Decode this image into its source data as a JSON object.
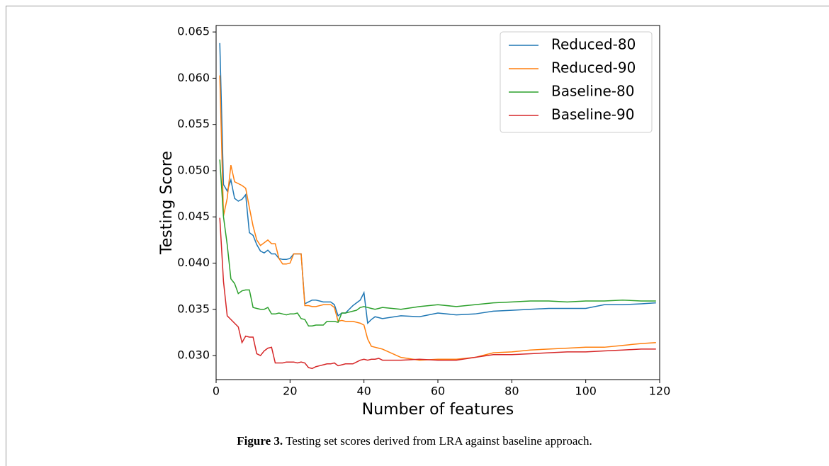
{
  "chart_data": {
    "type": "line",
    "x_label": "Number of features",
    "y_label": "Testing Score",
    "x": [
      1,
      2,
      3,
      4,
      5,
      6,
      7,
      8,
      9,
      10,
      11,
      12,
      13,
      14,
      15,
      16,
      17,
      18,
      19,
      20,
      21,
      22,
      23,
      24,
      25,
      26,
      27,
      28,
      29,
      30,
      31,
      32,
      33,
      34,
      35,
      36,
      37,
      38,
      39,
      40,
      41,
      42,
      43,
      44,
      45,
      50,
      55,
      60,
      65,
      70,
      75,
      80,
      85,
      90,
      95,
      100,
      105,
      110,
      115,
      119
    ],
    "series": [
      {
        "name": "Reduced-80",
        "color": "#1f77b4",
        "values": [
          0.0638,
          0.0485,
          0.0478,
          0.049,
          0.047,
          0.0467,
          0.0469,
          0.0474,
          0.0433,
          0.043,
          0.042,
          0.0413,
          0.0411,
          0.0414,
          0.041,
          0.041,
          0.0405,
          0.0404,
          0.0404,
          0.0405,
          0.041,
          0.041,
          0.041,
          0.0356,
          0.0358,
          0.036,
          0.036,
          0.0359,
          0.0358,
          0.0358,
          0.0358,
          0.0355,
          0.0343,
          0.0346,
          0.0346,
          0.035,
          0.0354,
          0.0357,
          0.036,
          0.0368,
          0.0335,
          0.0339,
          0.0342,
          0.0341,
          0.034,
          0.0343,
          0.0342,
          0.0346,
          0.0344,
          0.0345,
          0.0348,
          0.0349,
          0.035,
          0.0351,
          0.0351,
          0.0351,
          0.0355,
          0.0355,
          0.0356,
          0.0357
        ]
      },
      {
        "name": "Reduced-90",
        "color": "#ff7f0e",
        "values": [
          0.0603,
          0.0451,
          0.047,
          0.0506,
          0.0488,
          0.0486,
          0.0484,
          0.0481,
          0.046,
          0.044,
          0.0425,
          0.0419,
          0.0422,
          0.0425,
          0.0421,
          0.0421,
          0.0405,
          0.0399,
          0.0399,
          0.04,
          0.041,
          0.041,
          0.041,
          0.0354,
          0.0354,
          0.0353,
          0.0353,
          0.0354,
          0.0355,
          0.0355,
          0.0355,
          0.0352,
          0.0337,
          0.0338,
          0.0337,
          0.0337,
          0.0337,
          0.0336,
          0.0335,
          0.0333,
          0.0318,
          0.031,
          0.0309,
          0.0308,
          0.0307,
          0.0298,
          0.0295,
          0.0296,
          0.0296,
          0.0298,
          0.0303,
          0.0304,
          0.0306,
          0.0307,
          0.0308,
          0.0309,
          0.0309,
          0.0311,
          0.0313,
          0.0314
        ]
      },
      {
        "name": "Baseline-80",
        "color": "#2ca02c",
        "values": [
          0.0512,
          0.045,
          0.042,
          0.0383,
          0.0378,
          0.0367,
          0.037,
          0.0371,
          0.0371,
          0.0352,
          0.0351,
          0.035,
          0.035,
          0.0352,
          0.0345,
          0.0345,
          0.0346,
          0.0345,
          0.0344,
          0.0345,
          0.0345,
          0.0346,
          0.034,
          0.0339,
          0.0332,
          0.0332,
          0.0333,
          0.0333,
          0.0333,
          0.0337,
          0.0337,
          0.0337,
          0.0336,
          0.0346,
          0.0346,
          0.0347,
          0.0348,
          0.0349,
          0.0352,
          0.0353,
          0.0352,
          0.0351,
          0.035,
          0.0351,
          0.0352,
          0.035,
          0.0353,
          0.0355,
          0.0353,
          0.0355,
          0.0357,
          0.0358,
          0.0359,
          0.0359,
          0.0358,
          0.0359,
          0.0359,
          0.036,
          0.0359,
          0.0359
        ]
      },
      {
        "name": "Baseline-90",
        "color": "#d62728",
        "values": [
          0.0449,
          0.038,
          0.0343,
          0.0339,
          0.0335,
          0.0331,
          0.0314,
          0.0321,
          0.032,
          0.032,
          0.0302,
          0.03,
          0.0305,
          0.0308,
          0.0309,
          0.0292,
          0.0292,
          0.0292,
          0.0293,
          0.0293,
          0.0293,
          0.0292,
          0.0293,
          0.0292,
          0.0287,
          0.0286,
          0.0288,
          0.0289,
          0.029,
          0.0291,
          0.0291,
          0.0292,
          0.0289,
          0.029,
          0.0291,
          0.0291,
          0.0291,
          0.0293,
          0.0295,
          0.0296,
          0.0295,
          0.0296,
          0.0296,
          0.0297,
          0.0295,
          0.0295,
          0.0296,
          0.0295,
          0.0295,
          0.0298,
          0.0301,
          0.0301,
          0.0302,
          0.0303,
          0.0304,
          0.0304,
          0.0305,
          0.0306,
          0.0307,
          0.0307
        ]
      }
    ],
    "xlim": [
      0,
      120
    ],
    "xticks": [
      0,
      20,
      40,
      60,
      80,
      100,
      120
    ],
    "ylim": [
      0.0274,
      0.0657
    ],
    "yticks": [
      {
        "value": 0.03,
        "label": "0.030"
      },
      {
        "value": 0.035,
        "label": "0.035"
      },
      {
        "value": 0.04,
        "label": "0.040"
      },
      {
        "value": 0.045,
        "label": "0.045"
      },
      {
        "value": 0.05,
        "label": "0.050"
      },
      {
        "value": 0.055,
        "label": "0.055"
      },
      {
        "value": 0.06,
        "label": "0.060"
      },
      {
        "value": 0.065,
        "label": "0.065"
      }
    ],
    "grid": false,
    "legend": "upper-right"
  },
  "caption": {
    "label": "Figure 3.",
    "text": "Testing set scores derived from LRA against baseline approach."
  }
}
